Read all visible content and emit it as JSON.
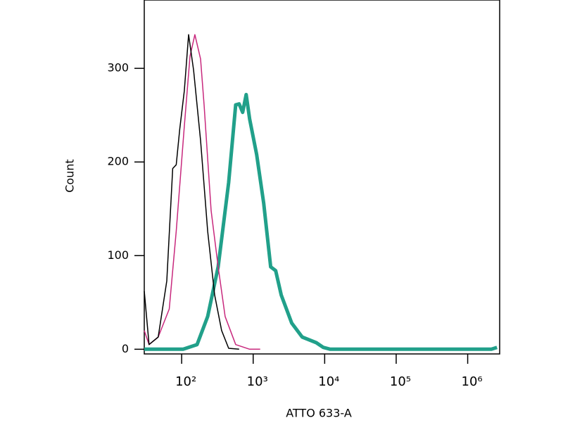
{
  "chart_data": {
    "type": "line",
    "x_label": "ATTO 633-A",
    "y_label": "Count",
    "x_scale": "log",
    "xlim": [
      30,
      2800000
    ],
    "ylim": [
      -5,
      373
    ],
    "xticks": [
      {
        "value": 100,
        "label": "10²"
      },
      {
        "value": 1000,
        "label": "10³"
      },
      {
        "value": 10000,
        "label": "10⁴"
      },
      {
        "value": 100000,
        "label": "10⁵"
      },
      {
        "value": 1000000,
        "label": "10⁶"
      }
    ],
    "yticks": [
      0,
      100,
      200,
      300
    ],
    "series": [
      {
        "color": "#000000",
        "width": 1.5,
        "x": [
          30,
          35,
          47,
          62,
          75,
          84,
          94,
          109,
          125,
          147,
          184,
          231,
          289,
          362,
          454,
          637
        ],
        "values": [
          62,
          5,
          13,
          73,
          193,
          197,
          235,
          276,
          336,
          298,
          223,
          126,
          58,
          20,
          1,
          0
        ]
      },
      {
        "color": "#c8287d",
        "width": 1.5,
        "x": [
          30,
          35,
          47,
          67,
          84,
          109,
          131,
          153,
          184,
          206,
          258,
          324,
          405,
          569,
          893,
          1253
        ],
        "values": [
          20,
          5,
          13,
          43,
          126,
          238,
          313,
          336,
          310,
          261,
          148,
          88,
          35,
          5,
          0,
          0
        ]
      },
      {
        "color": "#21a08a",
        "width": 5,
        "x": [
          30,
          105,
          164,
          231,
          324,
          454,
          569,
          637,
          713,
          798,
          893,
          1119,
          1403,
          1758,
          2061,
          2467,
          3459,
          4853,
          7624,
          9553,
          11970,
          2150000,
          2570000
        ],
        "values": [
          0,
          0,
          5,
          35,
          88,
          178,
          261,
          262,
          253,
          272,
          246,
          208,
          156,
          88,
          84,
          58,
          28,
          13,
          7,
          2,
          0,
          0,
          2
        ]
      }
    ]
  }
}
